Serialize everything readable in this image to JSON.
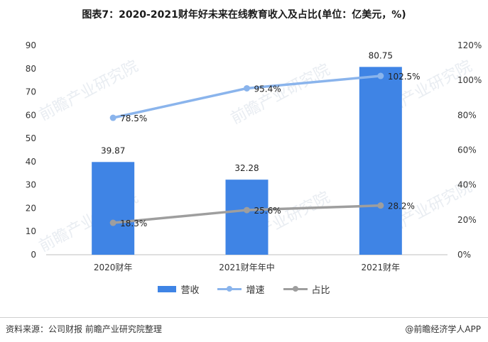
{
  "title": "图表7：2020-2021财年好未来在线教育收入及占比(单位：亿美元，%)",
  "legend": {
    "bar": "营收",
    "line1": "增速",
    "line2": "占比"
  },
  "footer": {
    "source": "资料来源：公司财报 前瞻产业研究院整理",
    "brand": "@前瞻经济学人APP"
  },
  "colors": {
    "bar": "#3f84e5",
    "growth": "#8ab4ec",
    "share": "#9e9e9e"
  },
  "chart_data": {
    "type": "bar",
    "categories": [
      "2020财年",
      "2021财年年中",
      "2021财年"
    ],
    "series": [
      {
        "name": "营收",
        "type": "bar",
        "axis": "left",
        "values": [
          39.87,
          32.28,
          80.75
        ],
        "labels": [
          "39.87",
          "32.28",
          "80.75"
        ]
      },
      {
        "name": "增速",
        "type": "line",
        "axis": "right",
        "values": [
          78.5,
          95.4,
          102.5
        ],
        "labels": [
          "78.5%",
          "95.4%",
          "102.5%"
        ]
      },
      {
        "name": "占比",
        "type": "line",
        "axis": "right",
        "values": [
          18.3,
          25.6,
          28.2
        ],
        "labels": [
          "18.3%",
          "25.6%",
          "28.2%"
        ]
      }
    ],
    "y_left": {
      "min": 0,
      "max": 90,
      "step": 10,
      "ticks": [
        "0",
        "10",
        "20",
        "30",
        "40",
        "50",
        "60",
        "70",
        "80",
        "90"
      ]
    },
    "y_right": {
      "min": 0,
      "max": 120,
      "step": 20,
      "ticks": [
        "0%",
        "20%",
        "40%",
        "60%",
        "80%",
        "100%",
        "120%"
      ]
    },
    "grid": false,
    "legend_position": "bottom"
  }
}
